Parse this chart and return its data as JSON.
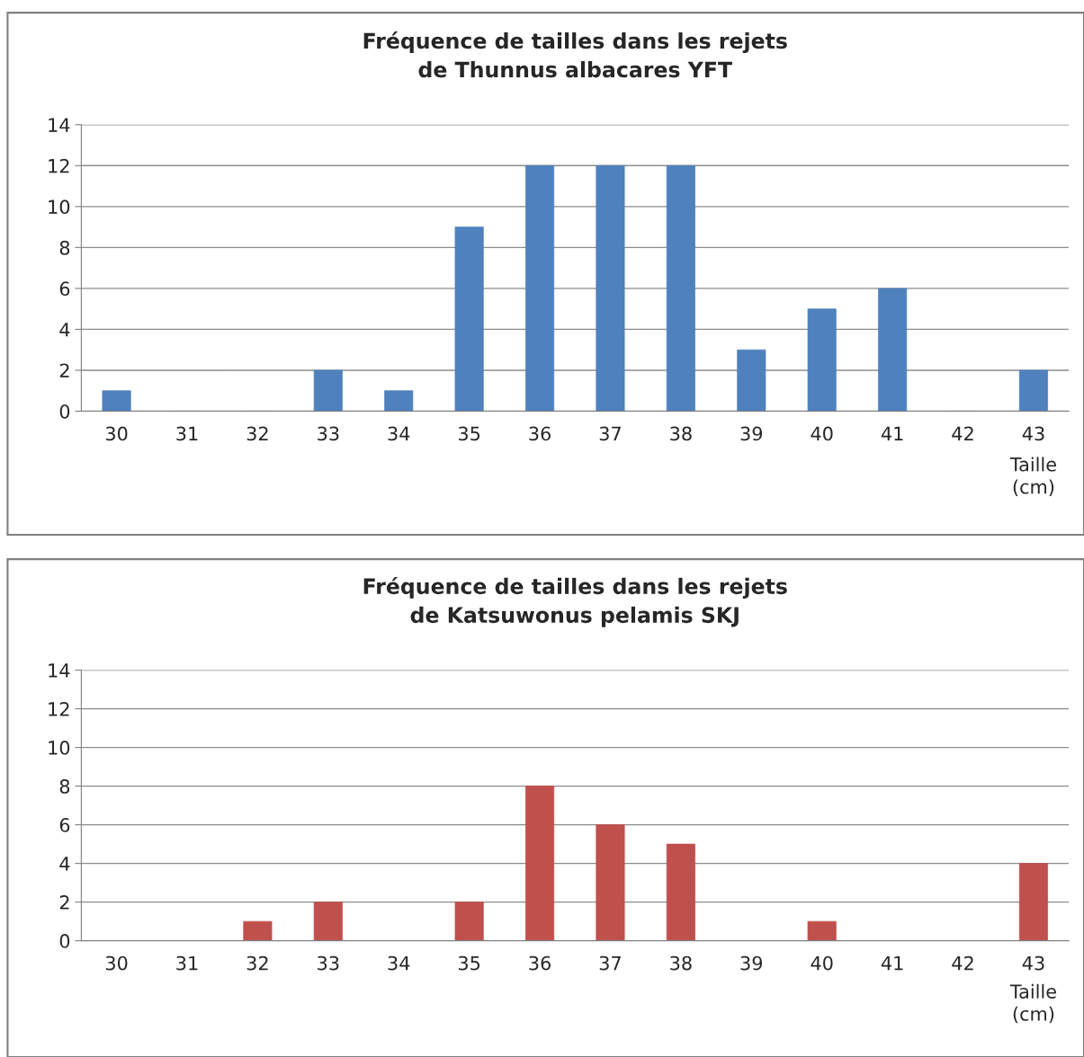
{
  "chart_data": [
    {
      "type": "bar",
      "title": "Fréquence de tailles dans les rejets\nde Thunnus albacares YFT",
      "xlabel": "Taille\n(cm)",
      "categories": [
        "30",
        "31",
        "32",
        "33",
        "34",
        "35",
        "36",
        "37",
        "38",
        "39",
        "40",
        "41",
        "42",
        "43"
      ],
      "values": [
        1,
        0,
        0,
        2,
        1,
        9,
        12,
        12,
        12,
        3,
        5,
        6,
        0,
        2
      ],
      "color": "#4f81bd",
      "ylim": [
        0,
        14
      ],
      "yticks": [
        0,
        2,
        4,
        6,
        8,
        10,
        12,
        14
      ],
      "grid": "y",
      "legend": false
    },
    {
      "type": "bar",
      "title": "Fréquence de tailles dans les rejets\nde Katsuwonus pelamis SKJ",
      "xlabel": "Taille\n(cm)",
      "categories": [
        "30",
        "31",
        "32",
        "33",
        "34",
        "35",
        "36",
        "37",
        "38",
        "39",
        "40",
        "41",
        "42",
        "43"
      ],
      "values": [
        0,
        0,
        1,
        2,
        0,
        2,
        8,
        6,
        5,
        0,
        1,
        0,
        0,
        4
      ],
      "color": "#c0504d",
      "ylim": [
        0,
        14
      ],
      "yticks": [
        0,
        2,
        4,
        6,
        8,
        10,
        12,
        14
      ],
      "grid": "y",
      "legend": false
    }
  ]
}
